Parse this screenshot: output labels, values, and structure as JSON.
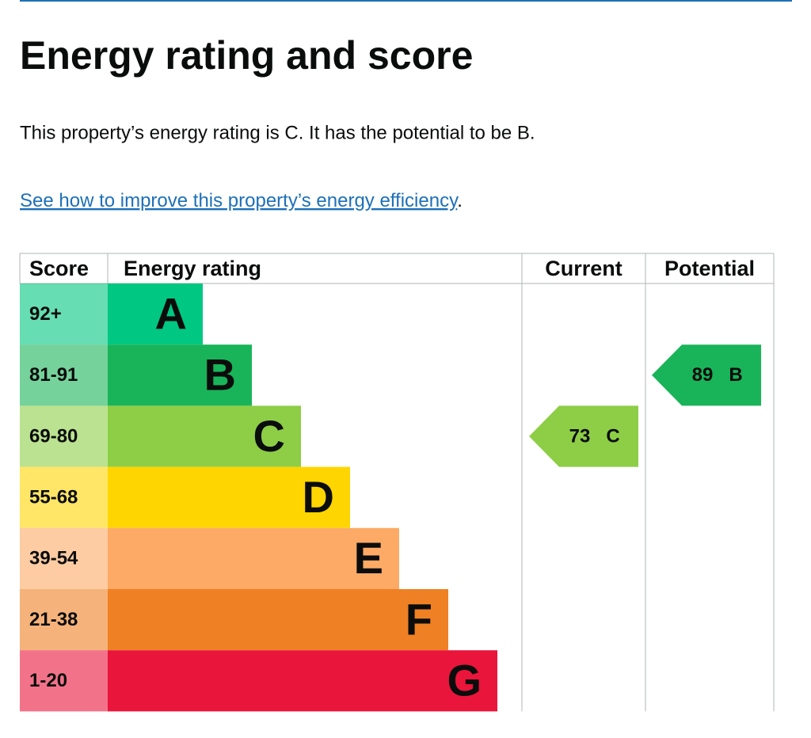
{
  "header": {
    "title": "Energy rating and score"
  },
  "summary": "This property’s energy rating is C. It has the potential to be B.",
  "link": {
    "text": "See how to improve this property’s energy efficiency",
    "after": "."
  },
  "table": {
    "headers": [
      "Score",
      "Energy rating",
      "Current",
      "Potential"
    ],
    "bands": [
      {
        "score": "92+",
        "rating": "A",
        "color": "#00c781"
      },
      {
        "score": "81-91",
        "rating": "B",
        "color": "#19b459"
      },
      {
        "score": "69-80",
        "rating": "C",
        "color": "#8dce46"
      },
      {
        "score": "55-68",
        "rating": "D",
        "color": "#ffd500"
      },
      {
        "score": "39-54",
        "rating": "E",
        "color": "#fcaa65"
      },
      {
        "score": "21-38",
        "rating": "F",
        "color": "#ef8023"
      },
      {
        "score": "1-20",
        "rating": "G",
        "color": "#e9153b"
      }
    ],
    "current": {
      "score": 73,
      "rating": "C"
    },
    "potential": {
      "score": 89,
      "rating": "B"
    }
  }
}
